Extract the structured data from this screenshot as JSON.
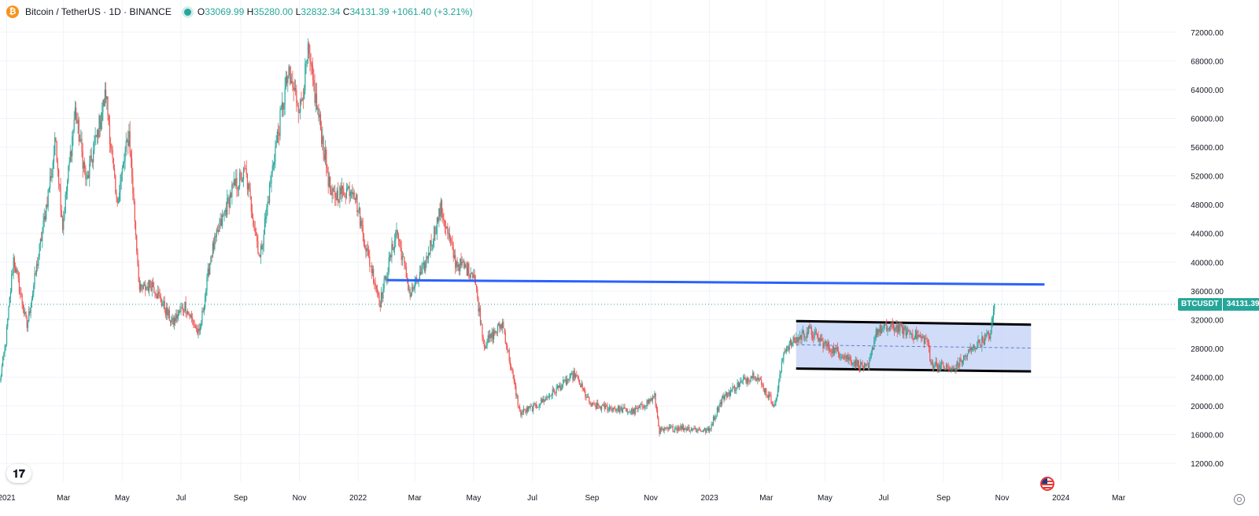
{
  "header": {
    "coin_icon": "bitcoin-icon",
    "symbol": "Bitcoin / TetherUS · 1D · BINANCE",
    "open_label": "O",
    "open": "33069.99",
    "high_label": "H",
    "high": "35280.00",
    "low_label": "L",
    "low": "32832.34",
    "close_label": "C",
    "close": "34131.39",
    "change": "+1061.40 (+3.21%)"
  },
  "price_tag": {
    "symbol": "BTCUSDT",
    "value": "34131.39"
  },
  "colors": {
    "up": "#26a69a",
    "down": "#ef5350",
    "line": "#2962ff",
    "channel_fill": "#c5d3f8",
    "channel_edge": "#000000"
  },
  "chart_data": {
    "type": "candlestick",
    "y_axis": {
      "ticks": [
        12000,
        16000,
        20000,
        24000,
        28000,
        32000,
        36000,
        40000,
        44000,
        48000,
        52000,
        56000,
        60000,
        64000,
        68000,
        72000
      ],
      "tick_labels": [
        "12000.00",
        "16000.00",
        "20000.00",
        "24000.00",
        "28000.00",
        "32000.00",
        "36000.00",
        "40000.00",
        "44000.00",
        "48000.00",
        "52000.00",
        "56000.00",
        "60000.00",
        "64000.00",
        "68000.00",
        "72000.00"
      ],
      "range": [
        9500,
        74500
      ]
    },
    "x_axis": {
      "range": [
        "2020-12-25",
        "2024-04-30"
      ],
      "ticks": [
        {
          "date": "2021-01-01",
          "label": "2021"
        },
        {
          "date": "2021-03-01",
          "label": "Mar"
        },
        {
          "date": "2021-05-01",
          "label": "May"
        },
        {
          "date": "2021-07-01",
          "label": "Jul"
        },
        {
          "date": "2021-09-01",
          "label": "Sep"
        },
        {
          "date": "2021-11-01",
          "label": "Nov"
        },
        {
          "date": "2022-01-01",
          "label": "2022"
        },
        {
          "date": "2022-03-01",
          "label": "Mar"
        },
        {
          "date": "2022-05-01",
          "label": "May"
        },
        {
          "date": "2022-07-01",
          "label": "Jul"
        },
        {
          "date": "2022-09-01",
          "label": "Sep"
        },
        {
          "date": "2022-11-01",
          "label": "Nov"
        },
        {
          "date": "2023-01-01",
          "label": "2023"
        },
        {
          "date": "2023-03-01",
          "label": "Mar"
        },
        {
          "date": "2023-05-01",
          "label": "May"
        },
        {
          "date": "2023-07-01",
          "label": "Jul"
        },
        {
          "date": "2023-09-01",
          "label": "Sep"
        },
        {
          "date": "2023-11-01",
          "label": "Nov"
        },
        {
          "date": "2024-01-01",
          "label": "2024"
        },
        {
          "date": "2024-03-01",
          "label": "Mar"
        }
      ]
    },
    "price_path": [
      [
        "2020-12-25",
        23500
      ],
      [
        "2020-12-31",
        29000
      ],
      [
        "2021-01-08",
        40500
      ],
      [
        "2021-01-22",
        31000
      ],
      [
        "2021-02-08",
        45000
      ],
      [
        "2021-02-21",
        57000
      ],
      [
        "2021-02-28",
        45000
      ],
      [
        "2021-03-13",
        61000
      ],
      [
        "2021-03-25",
        51000
      ],
      [
        "2021-04-14",
        63500
      ],
      [
        "2021-04-25",
        48000
      ],
      [
        "2021-05-08",
        58000
      ],
      [
        "2021-05-19",
        36000
      ],
      [
        "2021-06-01",
        37000
      ],
      [
        "2021-06-22",
        31500
      ],
      [
        "2021-07-05",
        34000
      ],
      [
        "2021-07-20",
        29800
      ],
      [
        "2021-08-01",
        41000
      ],
      [
        "2021-08-23",
        50000
      ],
      [
        "2021-09-06",
        52500
      ],
      [
        "2021-09-21",
        40500
      ],
      [
        "2021-10-06",
        55000
      ],
      [
        "2021-10-20",
        66000
      ],
      [
        "2021-11-02",
        61500
      ],
      [
        "2021-11-10",
        68800
      ],
      [
        "2021-11-25",
        57000
      ],
      [
        "2021-12-04",
        49000
      ],
      [
        "2021-12-27",
        50500
      ],
      [
        "2022-01-10",
        41500
      ],
      [
        "2022-01-24",
        34500
      ],
      [
        "2022-02-10",
        44500
      ],
      [
        "2022-02-24",
        35500
      ],
      [
        "2022-03-10",
        39000
      ],
      [
        "2022-03-28",
        47500
      ],
      [
        "2022-04-12",
        40000
      ],
      [
        "2022-05-01",
        38500
      ],
      [
        "2022-05-12",
        28500
      ],
      [
        "2022-05-31",
        31500
      ],
      [
        "2022-06-18",
        19000
      ],
      [
        "2022-07-05",
        20000
      ],
      [
        "2022-08-14",
        24400
      ],
      [
        "2022-08-31",
        20000
      ],
      [
        "2022-09-15",
        19800
      ],
      [
        "2022-10-15",
        19200
      ],
      [
        "2022-11-05",
        21300
      ],
      [
        "2022-11-10",
        16500
      ],
      [
        "2022-12-01",
        17000
      ],
      [
        "2022-12-31",
        16500
      ],
      [
        "2023-01-14",
        21000
      ],
      [
        "2023-01-31",
        23000
      ],
      [
        "2023-02-17",
        24500
      ],
      [
        "2023-03-10",
        20000
      ],
      [
        "2023-03-20",
        28000
      ],
      [
        "2023-04-14",
        30500
      ],
      [
        "2023-05-01",
        28500
      ],
      [
        "2023-06-15",
        25000
      ],
      [
        "2023-06-23",
        30500
      ],
      [
        "2023-07-14",
        31000
      ],
      [
        "2023-08-16",
        29000
      ],
      [
        "2023-08-18",
        26000
      ],
      [
        "2023-09-11",
        25000
      ],
      [
        "2023-10-01",
        28000
      ],
      [
        "2023-10-20",
        30000
      ],
      [
        "2023-10-24",
        34131
      ]
    ],
    "drawings": {
      "horizontal_line": {
        "x": [
          "2022-01-31",
          "2023-12-15"
        ],
        "y": [
          37500,
          36900
        ]
      },
      "channel": {
        "x": [
          "2023-04-01",
          "2023-12-01"
        ],
        "upper": [
          31800,
          31300
        ],
        "lower": [
          25200,
          24800
        ],
        "midline": [
          28500,
          28050
        ]
      }
    },
    "last_price": 34131.39
  }
}
